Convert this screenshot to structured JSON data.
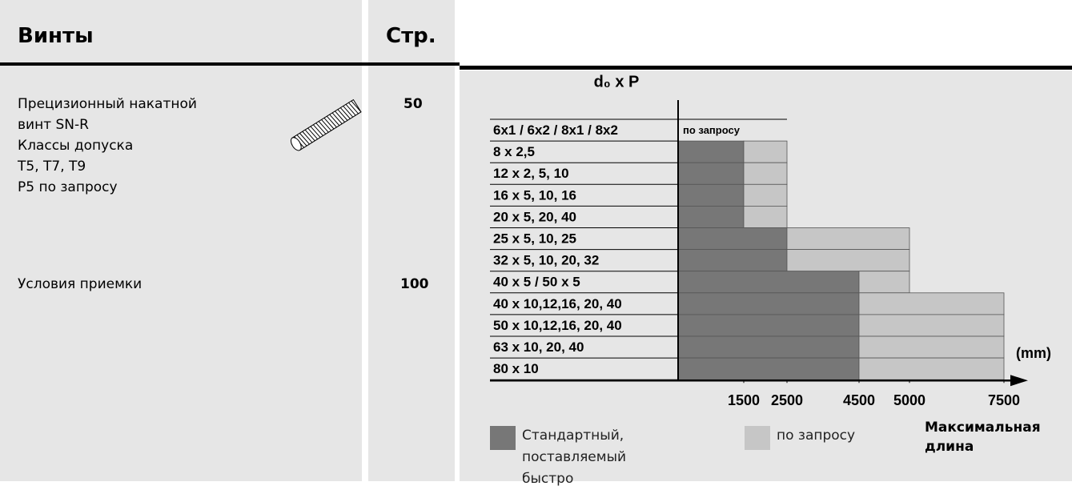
{
  "header": {
    "title": "Винты",
    "page": "Стр."
  },
  "items": [
    {
      "lines": [
        "Прецизионный накатной",
        "винт SN-R",
        "Классы допуска",
        "T5, T7, T9",
        "P5 по запросу"
      ],
      "page": "50"
    },
    {
      "lines": [
        "Условия приемки"
      ],
      "page": "100"
    }
  ],
  "chart_data": {
    "type": "bar",
    "orientation": "horizontal",
    "stacked": true,
    "title": "d₀ x P",
    "categories": [
      "6x1 / 6x2 / 8x1 / 8x2",
      "8 x 2,5",
      "12 x 2, 5, 10",
      "16  x 5, 10, 16",
      "20 x 5, 20, 40",
      "25 x 5, 10, 25",
      "32 x 5, 10, 20, 32",
      "40 x 5 / 50 x 5",
      "40 x 10,12,16, 20, 40",
      "50 x 10,12,16, 20, 40",
      "63 x 10, 20, 40",
      "80 x 10"
    ],
    "series": [
      {
        "name": "Стандартный, поставляемый быстро",
        "color": "#777777",
        "values": [
          null,
          1500,
          1500,
          1500,
          1500,
          2500,
          2500,
          4500,
          4500,
          4500,
          4500,
          4500
        ]
      },
      {
        "name": "по запросу",
        "color": "#c6c6c6",
        "values": [
          null,
          1000,
          1000,
          1000,
          1000,
          2500,
          2500,
          500,
          3000,
          3000,
          3000,
          3000
        ]
      }
    ],
    "annotation": "по запросу",
    "xlim": [
      0,
      7500
    ],
    "xticks": [
      1500,
      2500,
      4500,
      5000,
      7500
    ],
    "x_unit": "(mm)",
    "x_label": "Максимальная длина"
  }
}
